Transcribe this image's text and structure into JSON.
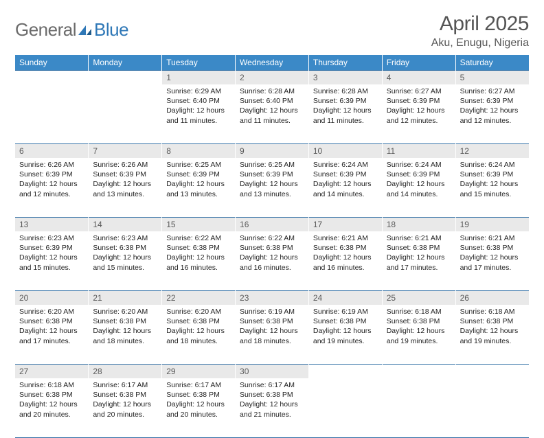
{
  "brand": {
    "part1": "General",
    "part2": "Blue"
  },
  "title": "April 2025",
  "location": "Aku, Enugu, Nigeria",
  "style": {
    "header_bg": "#3b89c7",
    "header_text": "#ffffff",
    "daynum_bg": "#e9e9e9",
    "daynum_text": "#5a5a5a",
    "rule_color": "#2f6ea5",
    "body_text": "#222222",
    "title_color": "#555555",
    "logo_gray": "#6b6b6b",
    "logo_blue": "#2f78b7",
    "page_bg": "#ffffff",
    "title_fontsize": 30,
    "subtitle_fontsize": 16,
    "dayhdr_fontsize": 12,
    "cell_fontsize": 10.5
  },
  "weekdays": [
    "Sunday",
    "Monday",
    "Tuesday",
    "Wednesday",
    "Thursday",
    "Friday",
    "Saturday"
  ],
  "weeks": [
    [
      null,
      null,
      {
        "n": "1",
        "sr": "Sunrise: 6:29 AM",
        "ss": "Sunset: 6:40 PM",
        "dl": "Daylight: 12 hours and 11 minutes."
      },
      {
        "n": "2",
        "sr": "Sunrise: 6:28 AM",
        "ss": "Sunset: 6:40 PM",
        "dl": "Daylight: 12 hours and 11 minutes."
      },
      {
        "n": "3",
        "sr": "Sunrise: 6:28 AM",
        "ss": "Sunset: 6:39 PM",
        "dl": "Daylight: 12 hours and 11 minutes."
      },
      {
        "n": "4",
        "sr": "Sunrise: 6:27 AM",
        "ss": "Sunset: 6:39 PM",
        "dl": "Daylight: 12 hours and 12 minutes."
      },
      {
        "n": "5",
        "sr": "Sunrise: 6:27 AM",
        "ss": "Sunset: 6:39 PM",
        "dl": "Daylight: 12 hours and 12 minutes."
      }
    ],
    [
      {
        "n": "6",
        "sr": "Sunrise: 6:26 AM",
        "ss": "Sunset: 6:39 PM",
        "dl": "Daylight: 12 hours and 12 minutes."
      },
      {
        "n": "7",
        "sr": "Sunrise: 6:26 AM",
        "ss": "Sunset: 6:39 PM",
        "dl": "Daylight: 12 hours and 13 minutes."
      },
      {
        "n": "8",
        "sr": "Sunrise: 6:25 AM",
        "ss": "Sunset: 6:39 PM",
        "dl": "Daylight: 12 hours and 13 minutes."
      },
      {
        "n": "9",
        "sr": "Sunrise: 6:25 AM",
        "ss": "Sunset: 6:39 PM",
        "dl": "Daylight: 12 hours and 13 minutes."
      },
      {
        "n": "10",
        "sr": "Sunrise: 6:24 AM",
        "ss": "Sunset: 6:39 PM",
        "dl": "Daylight: 12 hours and 14 minutes."
      },
      {
        "n": "11",
        "sr": "Sunrise: 6:24 AM",
        "ss": "Sunset: 6:39 PM",
        "dl": "Daylight: 12 hours and 14 minutes."
      },
      {
        "n": "12",
        "sr": "Sunrise: 6:24 AM",
        "ss": "Sunset: 6:39 PM",
        "dl": "Daylight: 12 hours and 15 minutes."
      }
    ],
    [
      {
        "n": "13",
        "sr": "Sunrise: 6:23 AM",
        "ss": "Sunset: 6:39 PM",
        "dl": "Daylight: 12 hours and 15 minutes."
      },
      {
        "n": "14",
        "sr": "Sunrise: 6:23 AM",
        "ss": "Sunset: 6:38 PM",
        "dl": "Daylight: 12 hours and 15 minutes."
      },
      {
        "n": "15",
        "sr": "Sunrise: 6:22 AM",
        "ss": "Sunset: 6:38 PM",
        "dl": "Daylight: 12 hours and 16 minutes."
      },
      {
        "n": "16",
        "sr": "Sunrise: 6:22 AM",
        "ss": "Sunset: 6:38 PM",
        "dl": "Daylight: 12 hours and 16 minutes."
      },
      {
        "n": "17",
        "sr": "Sunrise: 6:21 AM",
        "ss": "Sunset: 6:38 PM",
        "dl": "Daylight: 12 hours and 16 minutes."
      },
      {
        "n": "18",
        "sr": "Sunrise: 6:21 AM",
        "ss": "Sunset: 6:38 PM",
        "dl": "Daylight: 12 hours and 17 minutes."
      },
      {
        "n": "19",
        "sr": "Sunrise: 6:21 AM",
        "ss": "Sunset: 6:38 PM",
        "dl": "Daylight: 12 hours and 17 minutes."
      }
    ],
    [
      {
        "n": "20",
        "sr": "Sunrise: 6:20 AM",
        "ss": "Sunset: 6:38 PM",
        "dl": "Daylight: 12 hours and 17 minutes."
      },
      {
        "n": "21",
        "sr": "Sunrise: 6:20 AM",
        "ss": "Sunset: 6:38 PM",
        "dl": "Daylight: 12 hours and 18 minutes."
      },
      {
        "n": "22",
        "sr": "Sunrise: 6:20 AM",
        "ss": "Sunset: 6:38 PM",
        "dl": "Daylight: 12 hours and 18 minutes."
      },
      {
        "n": "23",
        "sr": "Sunrise: 6:19 AM",
        "ss": "Sunset: 6:38 PM",
        "dl": "Daylight: 12 hours and 18 minutes."
      },
      {
        "n": "24",
        "sr": "Sunrise: 6:19 AM",
        "ss": "Sunset: 6:38 PM",
        "dl": "Daylight: 12 hours and 19 minutes."
      },
      {
        "n": "25",
        "sr": "Sunrise: 6:18 AM",
        "ss": "Sunset: 6:38 PM",
        "dl": "Daylight: 12 hours and 19 minutes."
      },
      {
        "n": "26",
        "sr": "Sunrise: 6:18 AM",
        "ss": "Sunset: 6:38 PM",
        "dl": "Daylight: 12 hours and 19 minutes."
      }
    ],
    [
      {
        "n": "27",
        "sr": "Sunrise: 6:18 AM",
        "ss": "Sunset: 6:38 PM",
        "dl": "Daylight: 12 hours and 20 minutes."
      },
      {
        "n": "28",
        "sr": "Sunrise: 6:17 AM",
        "ss": "Sunset: 6:38 PM",
        "dl": "Daylight: 12 hours and 20 minutes."
      },
      {
        "n": "29",
        "sr": "Sunrise: 6:17 AM",
        "ss": "Sunset: 6:38 PM",
        "dl": "Daylight: 12 hours and 20 minutes."
      },
      {
        "n": "30",
        "sr": "Sunrise: 6:17 AM",
        "ss": "Sunset: 6:38 PM",
        "dl": "Daylight: 12 hours and 21 minutes."
      },
      null,
      null,
      null
    ]
  ]
}
